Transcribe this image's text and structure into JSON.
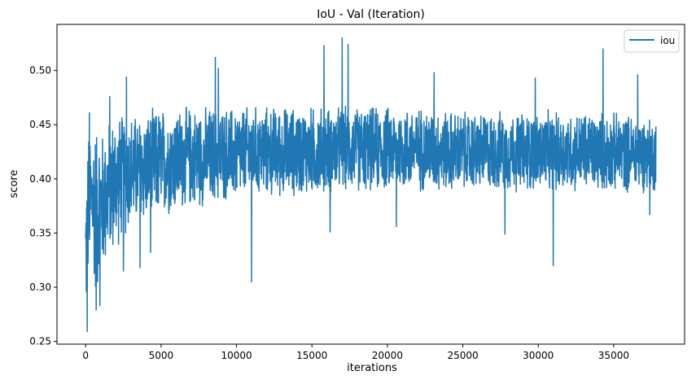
{
  "chart_data": {
    "type": "line",
    "title": "IoU - Val (Iteration)",
    "xlabel": "iterations",
    "ylabel": "score",
    "xlim": [
      -1900,
      39700
    ],
    "ylim": [
      0.2475,
      0.5425
    ],
    "x_ticks": [
      0,
      5000,
      10000,
      15000,
      20000,
      25000,
      30000,
      35000
    ],
    "x_tick_labels": [
      "0",
      "5000",
      "10000",
      "15000",
      "20000",
      "25000",
      "30000",
      "35000"
    ],
    "y_ticks": [
      0.25,
      0.3,
      0.35,
      0.4,
      0.45,
      0.5
    ],
    "y_tick_labels": [
      "0.25",
      "0.30",
      "0.35",
      "0.40",
      "0.45",
      "0.50"
    ],
    "grid": false,
    "legend": {
      "position": "top-right",
      "entries": [
        "iou"
      ]
    },
    "series": [
      {
        "name": "iou",
        "color": "#1f77b4",
        "x_start": 0,
        "x_end": 37800,
        "envelope": {
          "x": [
            0,
            100,
            200,
            300,
            500,
            700,
            900,
            1200,
            1500,
            2000,
            2500,
            3000,
            4000,
            5000,
            6000,
            7000,
            8000,
            9000,
            10000,
            11000,
            12000,
            13000,
            15000,
            17000,
            20000,
            22000,
            25000,
            28000,
            31000,
            34000,
            37800
          ],
          "low": [
            0.26,
            0.28,
            0.3,
            0.31,
            0.3,
            0.28,
            0.3,
            0.31,
            0.32,
            0.33,
            0.34,
            0.35,
            0.355,
            0.36,
            0.365,
            0.37,
            0.37,
            0.375,
            0.375,
            0.38,
            0.38,
            0.38,
            0.38,
            0.385,
            0.385,
            0.385,
            0.385,
            0.385,
            0.385,
            0.385,
            0.385
          ],
          "high": [
            0.4,
            0.43,
            0.45,
            0.45,
            0.46,
            0.46,
            0.45,
            0.45,
            0.46,
            0.465,
            0.465,
            0.465,
            0.465,
            0.47,
            0.47,
            0.47,
            0.47,
            0.47,
            0.47,
            0.47,
            0.47,
            0.47,
            0.47,
            0.47,
            0.47,
            0.47,
            0.465,
            0.465,
            0.465,
            0.465,
            0.46
          ]
        },
        "spikes": [
          {
            "x": 100,
            "y": 0.259
          },
          {
            "x": 250,
            "y": 0.461
          },
          {
            "x": 700,
            "y": 0.279
          },
          {
            "x": 950,
            "y": 0.283
          },
          {
            "x": 1600,
            "y": 0.476
          },
          {
            "x": 2500,
            "y": 0.315
          },
          {
            "x": 2700,
            "y": 0.494
          },
          {
            "x": 3600,
            "y": 0.318
          },
          {
            "x": 4300,
            "y": 0.332
          },
          {
            "x": 8600,
            "y": 0.512
          },
          {
            "x": 8800,
            "y": 0.502
          },
          {
            "x": 11000,
            "y": 0.305
          },
          {
            "x": 15800,
            "y": 0.523
          },
          {
            "x": 16200,
            "y": 0.351
          },
          {
            "x": 17000,
            "y": 0.53
          },
          {
            "x": 17400,
            "y": 0.524
          },
          {
            "x": 20600,
            "y": 0.356
          },
          {
            "x": 23100,
            "y": 0.498
          },
          {
            "x": 27800,
            "y": 0.349
          },
          {
            "x": 29800,
            "y": 0.493
          },
          {
            "x": 31000,
            "y": 0.32
          },
          {
            "x": 34300,
            "y": 0.52
          },
          {
            "x": 36600,
            "y": 0.496
          },
          {
            "x": 37400,
            "y": 0.367
          }
        ]
      }
    ]
  }
}
